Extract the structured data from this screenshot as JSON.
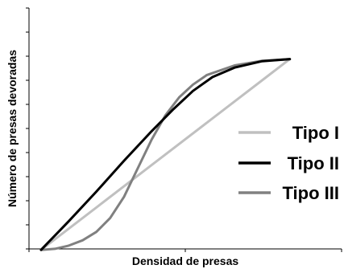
{
  "chart_data": {
    "type": "line",
    "xlabel": "Densidad de presas",
    "ylabel": "Número de presas devoradas",
    "xlim": [
      0,
      10
    ],
    "ylim": [
      0,
      10
    ],
    "x_tick_count": 3,
    "y_tick_count": 10,
    "legend_position": "right",
    "grid": false,
    "series": [
      {
        "name": "Tipo I",
        "color": "#c0c0c0",
        "points": [
          [
            1,
            1
          ],
          [
            3,
            3
          ],
          [
            5,
            5
          ],
          [
            7,
            7
          ],
          [
            9,
            9
          ],
          [
            10,
            10
          ]
        ]
      },
      {
        "name": "Tipo II",
        "color": "#000000",
        "points": [
          [
            1,
            1
          ],
          [
            2,
            2.35
          ],
          [
            3,
            3.75
          ],
          [
            4,
            5.2
          ],
          [
            5,
            6.6
          ],
          [
            5.8,
            7.65
          ],
          [
            6.5,
            8.5
          ],
          [
            7.2,
            9.15
          ],
          [
            8,
            9.6
          ],
          [
            9,
            9.9
          ],
          [
            10,
            10
          ]
        ]
      },
      {
        "name": "Tipo III",
        "color": "#808080",
        "points": [
          [
            1,
            1
          ],
          [
            1.5,
            1.05
          ],
          [
            2,
            1.2
          ],
          [
            2.5,
            1.45
          ],
          [
            3,
            1.85
          ],
          [
            3.5,
            2.5
          ],
          [
            4,
            3.5
          ],
          [
            4.5,
            4.85
          ],
          [
            5,
            6.2
          ],
          [
            5.5,
            7.35
          ],
          [
            6,
            8.2
          ],
          [
            6.5,
            8.8
          ],
          [
            7,
            9.25
          ],
          [
            8,
            9.7
          ],
          [
            9,
            9.92
          ],
          [
            10,
            10
          ]
        ]
      }
    ]
  }
}
